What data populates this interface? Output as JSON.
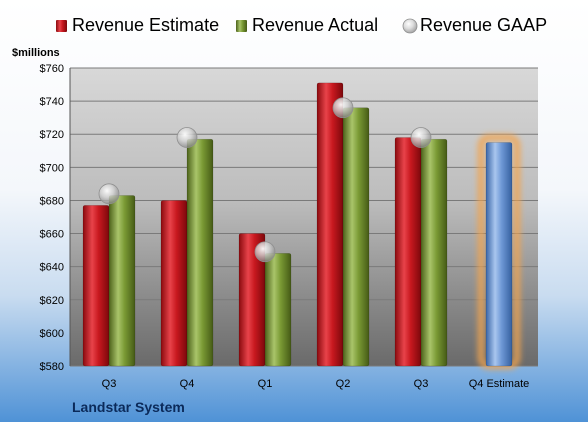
{
  "chart_data": {
    "type": "bar",
    "ylabel": "$millions",
    "ylim": [
      580,
      760
    ],
    "yticks": [
      "$580",
      "$600",
      "$620",
      "$640",
      "$660",
      "$680",
      "$700",
      "$720",
      "$740",
      "$760"
    ],
    "ytick_values": [
      580,
      600,
      620,
      640,
      660,
      680,
      700,
      720,
      740,
      760
    ],
    "categories": [
      "Q3",
      "Q4",
      "Q1",
      "Q2",
      "Q3",
      "Q4 Estimate"
    ],
    "series": [
      {
        "name": "Revenue Estimate",
        "values": [
          677,
          680,
          660,
          751,
          718,
          null
        ],
        "color": "#c0151b"
      },
      {
        "name": "Revenue Actual",
        "values": [
          683,
          717,
          648,
          736,
          717,
          null
        ],
        "color": "#6e8a2a"
      },
      {
        "name": "Revenue GAAP",
        "values": [
          684,
          718,
          649,
          736,
          718,
          null
        ],
        "color": "#bdbdbd"
      },
      {
        "name": "Q4 Estimate",
        "values": [
          null,
          null,
          null,
          null,
          null,
          715
        ],
        "color": "#5b86c8"
      }
    ],
    "legend_position": "top",
    "grid": true
  },
  "company": "Landstar System",
  "colors": {
    "estimate": "#c0151b",
    "actual": "#6e8a2a",
    "projection": "#5b86c8",
    "glow": "#f2a450",
    "background_bottom": "#5a9ad8"
  }
}
